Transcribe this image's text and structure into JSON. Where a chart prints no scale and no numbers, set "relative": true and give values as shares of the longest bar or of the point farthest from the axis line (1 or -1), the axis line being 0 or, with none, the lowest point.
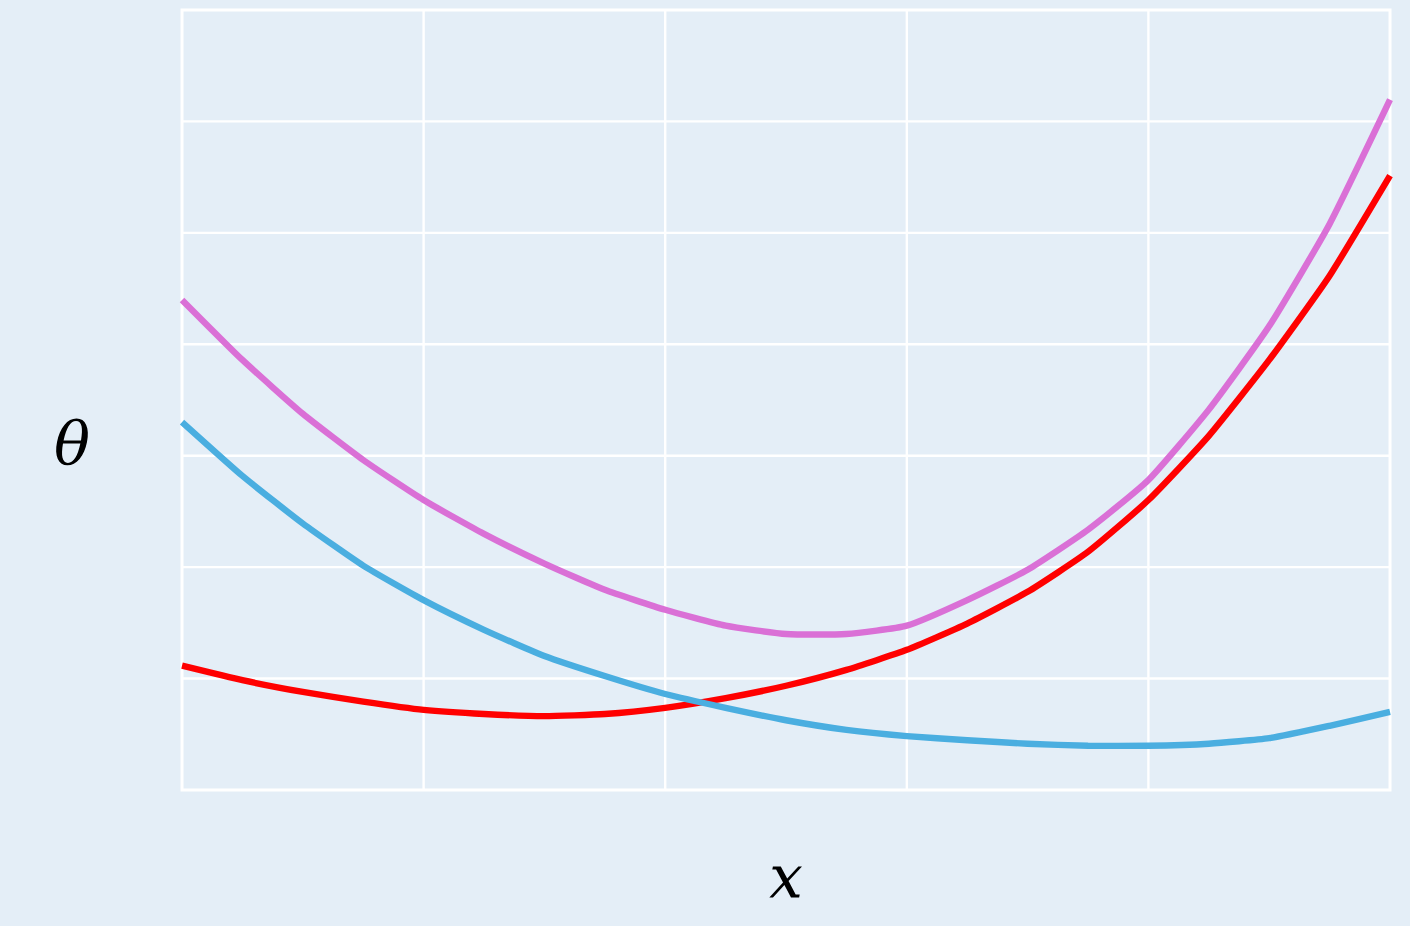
{
  "chart_data": {
    "type": "line",
    "relative": true,
    "xlabel": "x",
    "ylabel": "θ",
    "grid": true,
    "line_style": "solid",
    "marker": "none",
    "categories": [
      null,
      null,
      null,
      null,
      null,
      null,
      null,
      null,
      null,
      null,
      null,
      null,
      null,
      null,
      null,
      null,
      null,
      null,
      null,
      null,
      null
    ],
    "series": [
      {
        "color": "#da70d6",
        "values": [
          0.71,
          0.623,
          0.545,
          0.478,
          0.42,
          0.371,
          0.328,
          0.29,
          0.261,
          0.238,
          0.226,
          0.226,
          0.238,
          0.275,
          0.319,
          0.377,
          0.449,
          0.551,
          0.672,
          0.82,
          1
        ]
      },
      {
        "color": "#ff0000",
        "values": [
          0.18,
          0.159,
          0.142,
          0.128,
          0.116,
          0.11,
          0.107,
          0.11,
          0.119,
          0.133,
          0.151,
          0.174,
          0.203,
          0.241,
          0.287,
          0.345,
          0.42,
          0.513,
          0.623,
          0.745,
          0.89
        ]
      },
      {
        "color": "#4aaee0",
        "values": [
          0.533,
          0.455,
          0.386,
          0.325,
          0.275,
          0.232,
          0.194,
          0.165,
          0.139,
          0.119,
          0.101,
          0.087,
          0.078,
          0.072,
          0.067,
          0.064,
          0.064,
          0.067,
          0.075,
          0.093,
          0.113
        ]
      }
    ]
  }
}
